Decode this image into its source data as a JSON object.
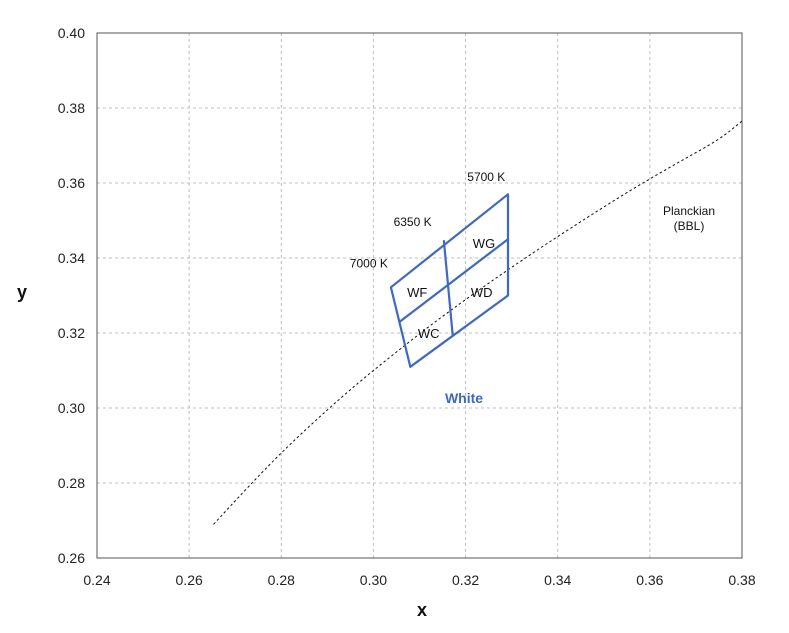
{
  "chart_data": {
    "type": "line",
    "xlabel": "x",
    "ylabel": "y",
    "xlim": [
      0.24,
      0.38
    ],
    "ylim": [
      0.26,
      0.4
    ],
    "x_ticks": [
      "0.24",
      "0.26",
      "0.28",
      "0.30",
      "0.32",
      "0.34",
      "0.36",
      "0.38"
    ],
    "y_ticks": [
      "0.26",
      "0.28",
      "0.30",
      "0.32",
      "0.34",
      "0.36",
      "0.38",
      "0.40"
    ],
    "grid": true,
    "colors": {
      "bins": "#3a66d6",
      "bbl": "#111111",
      "grid": "#bfbfbf"
    },
    "planckian_curve": {
      "label_lines": [
        "Planckian",
        "(BBL)"
      ],
      "points": [
        [
          0.2653,
          0.269
        ],
        [
          0.275,
          0.282
        ],
        [
          0.285,
          0.294
        ],
        [
          0.295,
          0.305
        ],
        [
          0.305,
          0.315
        ],
        [
          0.315,
          0.3245
        ],
        [
          0.325,
          0.3333
        ],
        [
          0.335,
          0.3417
        ],
        [
          0.345,
          0.3497
        ],
        [
          0.355,
          0.3575
        ],
        [
          0.365,
          0.3647
        ],
        [
          0.375,
          0.3715
        ],
        [
          0.38,
          0.3765
        ]
      ]
    },
    "white_bins": {
      "label": "White",
      "outline": [
        [
          0.3038,
          0.3322
        ],
        [
          0.3292,
          0.357
        ],
        [
          0.3292,
          0.33
        ],
        [
          0.308,
          0.311
        ]
      ],
      "dividers": [
        [
          [
            0.3153,
            0.3445
          ],
          [
            0.3172,
            0.3195
          ]
        ],
        [
          [
            0.3057,
            0.323
          ],
          [
            0.3292,
            0.345
          ]
        ]
      ],
      "regions": [
        {
          "name": "WG",
          "x": 0.324,
          "y": 0.344
        },
        {
          "name": "WF",
          "x": 0.3095,
          "y": 0.331
        },
        {
          "name": "WD",
          "x": 0.3235,
          "y": 0.331
        },
        {
          "name": "WC",
          "x": 0.312,
          "y": 0.32
        }
      ]
    },
    "cct_labels": [
      {
        "text": "5700 K",
        "x": 0.3245,
        "y": 0.3605
      },
      {
        "text": "6350 K",
        "x": 0.3085,
        "y": 0.3485
      },
      {
        "text": "7000 K",
        "x": 0.299,
        "y": 0.3375
      }
    ]
  }
}
